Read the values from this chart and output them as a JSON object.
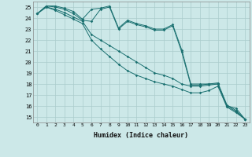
{
  "xlabel": "Humidex (Indice chaleur)",
  "ylabel": "",
  "xlim": [
    -0.5,
    23.5
  ],
  "ylim": [
    14.5,
    25.5
  ],
  "yticks": [
    15,
    16,
    17,
    18,
    19,
    20,
    21,
    22,
    23,
    24,
    25
  ],
  "xticks": [
    0,
    1,
    2,
    3,
    4,
    5,
    6,
    7,
    8,
    9,
    10,
    11,
    12,
    13,
    14,
    15,
    16,
    17,
    18,
    19,
    20,
    21,
    22,
    23
  ],
  "background_color": "#cce8e8",
  "grid_color": "#aacccc",
  "line_color": "#1a7070",
  "series": [
    [
      24.4,
      25.1,
      25.1,
      24.9,
      24.6,
      23.9,
      24.8,
      24.9,
      25.1,
      23.1,
      23.8,
      23.5,
      23.3,
      23.0,
      23.0,
      23.4,
      21.1,
      18.0,
      18.0,
      18.0,
      18.0,
      16.0,
      15.8,
      14.8
    ],
    [
      24.4,
      25.1,
      25.0,
      24.8,
      24.4,
      23.8,
      23.7,
      24.8,
      25.0,
      23.0,
      23.7,
      23.4,
      23.2,
      22.9,
      22.9,
      23.3,
      20.9,
      17.9,
      17.9,
      18.0,
      18.1,
      16.1,
      15.6,
      14.8
    ],
    [
      24.4,
      25.0,
      24.8,
      24.5,
      24.1,
      23.7,
      22.5,
      22.0,
      21.5,
      21.0,
      20.5,
      20.0,
      19.5,
      19.0,
      18.8,
      18.5,
      18.0,
      17.8,
      17.8,
      17.9,
      18.0,
      16.0,
      15.5,
      14.8
    ],
    [
      24.4,
      25.0,
      24.7,
      24.3,
      23.9,
      23.5,
      22.0,
      21.2,
      20.5,
      19.8,
      19.2,
      18.8,
      18.5,
      18.2,
      18.0,
      17.8,
      17.5,
      17.2,
      17.2,
      17.4,
      17.8,
      15.9,
      15.4,
      14.8
    ]
  ]
}
